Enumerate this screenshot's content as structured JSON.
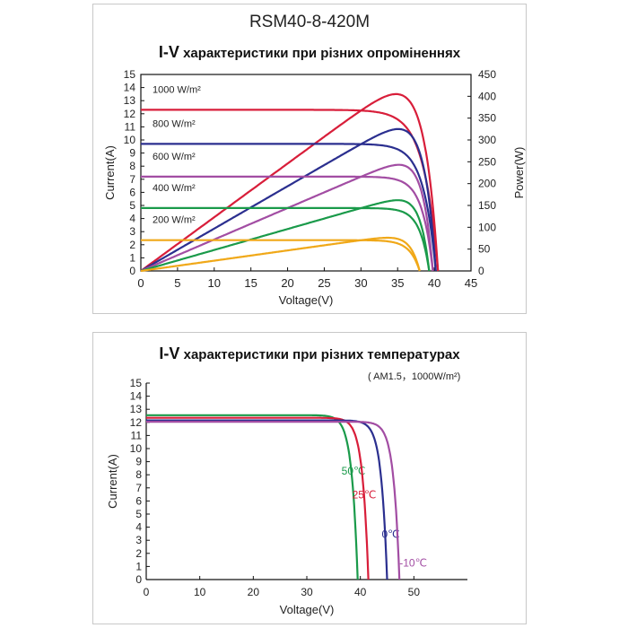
{
  "chart_data": [
    {
      "type": "line",
      "title": "RSM40-8-420M",
      "subtitle_prefix": "I-V",
      "subtitle": "характеристики при різних опроміненнях",
      "xlabel": "Voltage(V)",
      "ylabel": "Current(A)",
      "y2label": "Power(W)",
      "xlim": [
        0,
        45
      ],
      "ylim": [
        0,
        15
      ],
      "y2lim": [
        0,
        450
      ],
      "x_ticks": [
        0,
        5,
        10,
        15,
        20,
        25,
        30,
        35,
        40,
        45
      ],
      "y_ticks": [
        0,
        1,
        2,
        3,
        4,
        5,
        6,
        7,
        8,
        9,
        10,
        11,
        12,
        13,
        14,
        15
      ],
      "y2_ticks": [
        0,
        50,
        100,
        150,
        200,
        250,
        300,
        350,
        400,
        450
      ],
      "grid": false,
      "series": [
        {
          "name": "1000 W/m²",
          "color": "#d81e3a",
          "isc": 12.3,
          "voc": 40.5,
          "pmax": 405,
          "vmp": 33.3
        },
        {
          "name": "800 W/m²",
          "color": "#2b2f8f",
          "isc": 9.7,
          "voc": 40.2,
          "pmax": 325,
          "vmp": 33.3
        },
        {
          "name": "600 W/m²",
          "color": "#a24da3",
          "isc": 7.2,
          "voc": 39.8,
          "pmax": 243,
          "vmp": 33.2
        },
        {
          "name": "400 W/m²",
          "color": "#1a9a4a",
          "isc": 4.8,
          "voc": 39.3,
          "pmax": 162,
          "vmp": 33.0
        },
        {
          "name": "200 W/m²",
          "color": "#f0a818",
          "isc": 2.35,
          "voc": 38.0,
          "pmax": 76,
          "vmp": 32.5
        }
      ]
    },
    {
      "type": "line",
      "title_prefix": "I-V",
      "title": "характеристики при різних температурах",
      "condition": "( AM1.5，1000W/m²)",
      "xlabel": "Voltage(V)",
      "ylabel": "Current(A)",
      "xlim": [
        0,
        60
      ],
      "ylim": [
        0,
        15
      ],
      "x_ticks": [
        0,
        10,
        20,
        30,
        40,
        50
      ],
      "y_ticks": [
        0,
        1,
        2,
        3,
        4,
        5,
        6,
        7,
        8,
        9,
        10,
        11,
        12,
        13,
        14,
        15
      ],
      "grid": false,
      "series": [
        {
          "name": "50℃",
          "color": "#1a9a4a",
          "isc": 12.55,
          "voc": 39.5
        },
        {
          "name": "25℃",
          "color": "#d81e3a",
          "isc": 12.35,
          "voc": 41.5
        },
        {
          "name": "0℃",
          "color": "#2b2f8f",
          "isc": 12.15,
          "voc": 45.0
        },
        {
          "name": "-10℃",
          "color": "#a24da3",
          "isc": 12.05,
          "voc": 47.3
        }
      ]
    }
  ]
}
